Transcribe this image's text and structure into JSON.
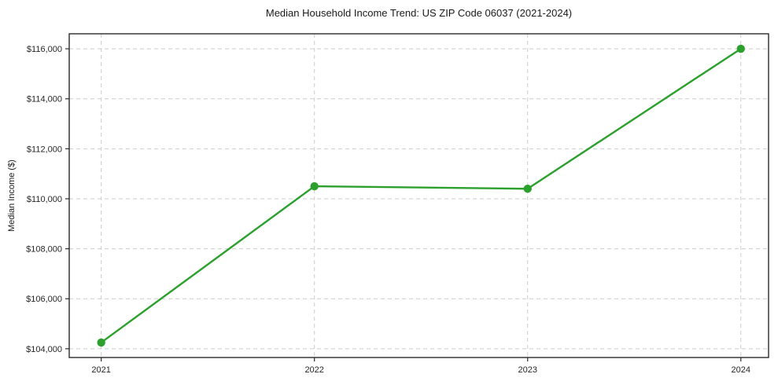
{
  "chart_data": {
    "type": "line",
    "title": "Median Household Income Trend: US ZIP Code 06037 (2021-2024)",
    "xlabel": "",
    "ylabel": "Median Income ($)",
    "categories": [
      2021,
      2022,
      2023,
      2024
    ],
    "values": [
      104250,
      110500,
      110400,
      116000
    ],
    "yticks": [
      104000,
      106000,
      108000,
      110000,
      112000,
      114000,
      116000
    ],
    "ytick_label_format": "$#,##0",
    "xlim": [
      2020.85,
      2024.13
    ],
    "ylim": [
      103650,
      116600
    ],
    "line_color": "#2ca02c",
    "marker": "circle",
    "grid": "dashed",
    "grid_color": "#cccccc",
    "frame_color": "#2b2b2b",
    "legend": "none"
  }
}
